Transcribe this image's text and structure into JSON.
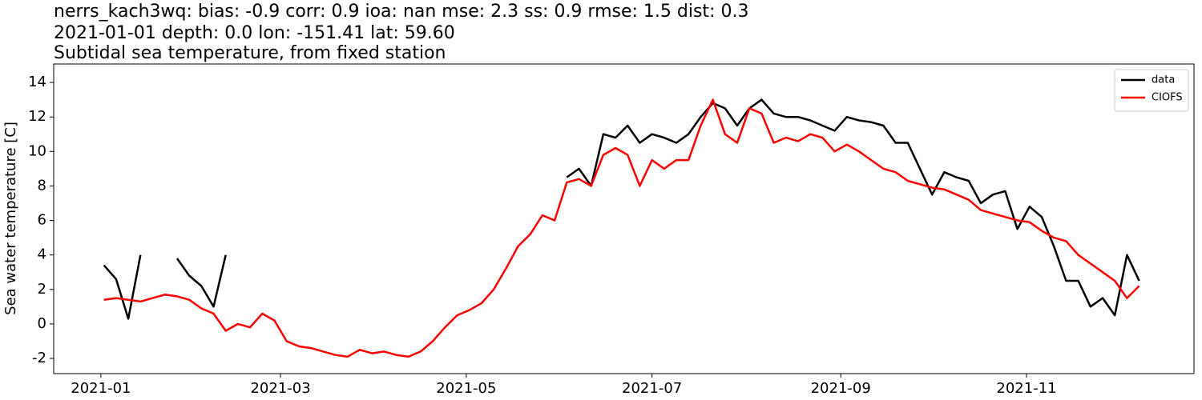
{
  "chart_data": {
    "type": "line",
    "title": [
      "nerrs_kach3wq: bias: -0.9  corr: 0.9  ioa: nan  mse: 2.3  ss: 0.9  rmse: 1.5  dist: 0.3",
      "2021-01-01 depth: 0.0 lon: -151.41 lat: 59.60",
      "Subtidal sea temperature, from fixed station"
    ],
    "ylabel": "Sea water temperature [C]",
    "x": [
      1,
      5,
      9,
      13,
      17,
      21,
      25,
      29,
      33,
      37,
      41,
      45,
      49,
      53,
      57,
      61,
      65,
      69,
      73,
      77,
      81,
      85,
      89,
      93,
      97,
      101,
      105,
      109,
      113,
      117,
      121,
      125,
      129,
      133,
      137,
      141,
      145,
      149,
      153,
      157,
      161,
      165,
      169,
      173,
      177,
      181,
      185,
      189,
      193,
      197,
      201,
      205,
      209,
      213,
      217,
      221,
      225,
      229,
      233,
      237,
      241,
      245,
      249,
      253,
      257,
      261,
      265,
      269,
      273,
      277,
      281,
      285,
      289,
      293,
      297,
      301,
      305,
      309,
      313,
      317,
      321,
      325,
      329,
      333,
      337,
      341
    ],
    "series": [
      {
        "name": "data",
        "color": "#000000",
        "values": [
          3.4,
          2.6,
          0.3,
          4.0,
          null,
          null,
          3.8,
          2.8,
          2.2,
          1.0,
          4.0,
          null,
          null,
          null,
          null,
          null,
          null,
          null,
          null,
          null,
          null,
          null,
          null,
          null,
          null,
          null,
          null,
          null,
          null,
          null,
          null,
          null,
          null,
          null,
          null,
          null,
          null,
          null,
          8.5,
          9.0,
          8.0,
          11.0,
          10.8,
          11.5,
          10.5,
          11.0,
          10.8,
          10.5,
          11.0,
          12.0,
          12.8,
          12.5,
          11.5,
          12.5,
          13.0,
          12.2,
          12.0,
          12.0,
          11.8,
          11.5,
          11.2,
          12.0,
          11.8,
          11.7,
          11.5,
          10.5,
          10.5,
          9.0,
          7.5,
          8.8,
          8.5,
          8.3,
          7.0,
          7.5,
          7.7,
          5.5,
          6.8,
          6.2,
          4.5,
          2.5,
          2.5,
          1.0,
          1.5,
          0.5,
          4.0,
          2.5
        ]
      },
      {
        "name": "CIOFS",
        "color": "#ff0000",
        "values": [
          1.4,
          1.5,
          1.4,
          1.3,
          1.5,
          1.7,
          1.6,
          1.4,
          0.9,
          0.6,
          -0.4,
          0.0,
          -0.2,
          0.6,
          0.2,
          -1.0,
          -1.3,
          -1.4,
          -1.6,
          -1.8,
          -1.9,
          -1.5,
          -1.7,
          -1.6,
          -1.8,
          -1.9,
          -1.6,
          -1.0,
          -0.2,
          0.5,
          0.8,
          1.2,
          2.0,
          3.2,
          4.5,
          5.2,
          6.3,
          6.0,
          8.2,
          8.4,
          8.0,
          9.8,
          10.2,
          9.8,
          8.0,
          9.5,
          9.0,
          9.5,
          9.5,
          11.5,
          13.0,
          11.0,
          10.5,
          12.5,
          12.2,
          10.5,
          10.8,
          10.6,
          11.0,
          10.8,
          10.0,
          10.4,
          10.0,
          9.5,
          9.0,
          8.8,
          8.3,
          8.1,
          7.9,
          7.8,
          7.5,
          7.2,
          6.6,
          6.4,
          6.2,
          6.0,
          5.9,
          5.4,
          5.0,
          4.8,
          4.0,
          3.5,
          3.0,
          2.5,
          1.5,
          2.2
        ]
      }
    ],
    "xlim": [
      -15.5,
      359
    ],
    "xticks": [
      {
        "value": 0,
        "label": "2021-01"
      },
      {
        "value": 59,
        "label": "2021-03"
      },
      {
        "value": 120,
        "label": "2021-05"
      },
      {
        "value": 181,
        "label": "2021-07"
      },
      {
        "value": 243,
        "label": "2021-09"
      },
      {
        "value": 304,
        "label": "2021-11"
      }
    ],
    "ylim": [
      -2.88,
      15.07
    ],
    "yticks": [
      -2,
      0,
      2,
      4,
      6,
      8,
      10,
      12,
      14
    ],
    "grid": false,
    "legend": "upper-right"
  }
}
